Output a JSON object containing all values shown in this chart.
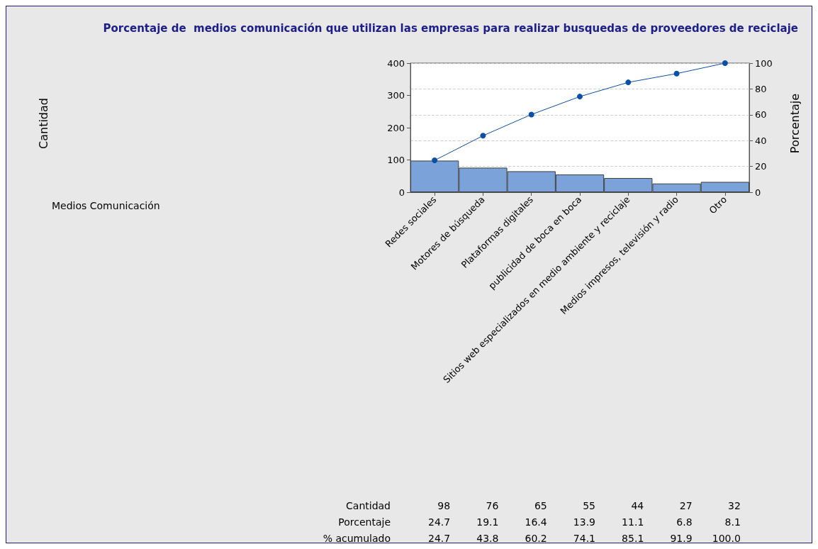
{
  "chart_data": {
    "type": "bar",
    "title": "Porcentaje de  medios comunicación que utilizan las empresas para realizar busquedas de proveedores de reciclaje",
    "y2label": "Porcentaje",
    "categories": [
      "Redes sociales",
      "Motores de búsqueda",
      "Plataformas digitales",
      "publicidad de boca en boca",
      "Sitios web especializados en medio ambiente y reciclaje",
      "Medios impresos, televisión y radio",
      "Otro"
    ],
    "series": [
      {
        "color": "#7ba3d9",
        "values": [
          98,
          76,
          65,
          55,
          44,
          27,
          32
        ],
        "value_labels": [
          "98",
          "76",
          "65",
          "55",
          "44",
          "27",
          "32"
        ]
      },
      {
        "type": "line",
        "axis": "y2",
        "color": "#0b4fa8",
        "values": [
          24.7,
          43.8,
          60.2,
          74.1,
          85.1,
          91.9,
          100
        ],
        "value_labels": [
          "24.7",
          "43.8",
          "60.2",
          "74.1",
          "85.1",
          "91.9",
          "100.0"
        ]
      }
    ],
    "annotations": [
      "Cantidad",
      "Medios Comunicación",
      "Cantidad",
      "Porcentaje",
      "% acumulado",
      "24.7",
      "19.1",
      "16.4",
      "13.9",
      "11.1",
      "6.8",
      "8.1"
    ],
    "ylim": [
      0,
      400
    ],
    "yticks": [
      0,
      100,
      200,
      300,
      400
    ],
    "y2lim": [
      0,
      100
    ],
    "y2ticks": [
      0,
      20,
      40,
      60,
      80,
      100
    ],
    "grid": "y",
    "marker": "circle",
    "line_style": "solid"
  }
}
